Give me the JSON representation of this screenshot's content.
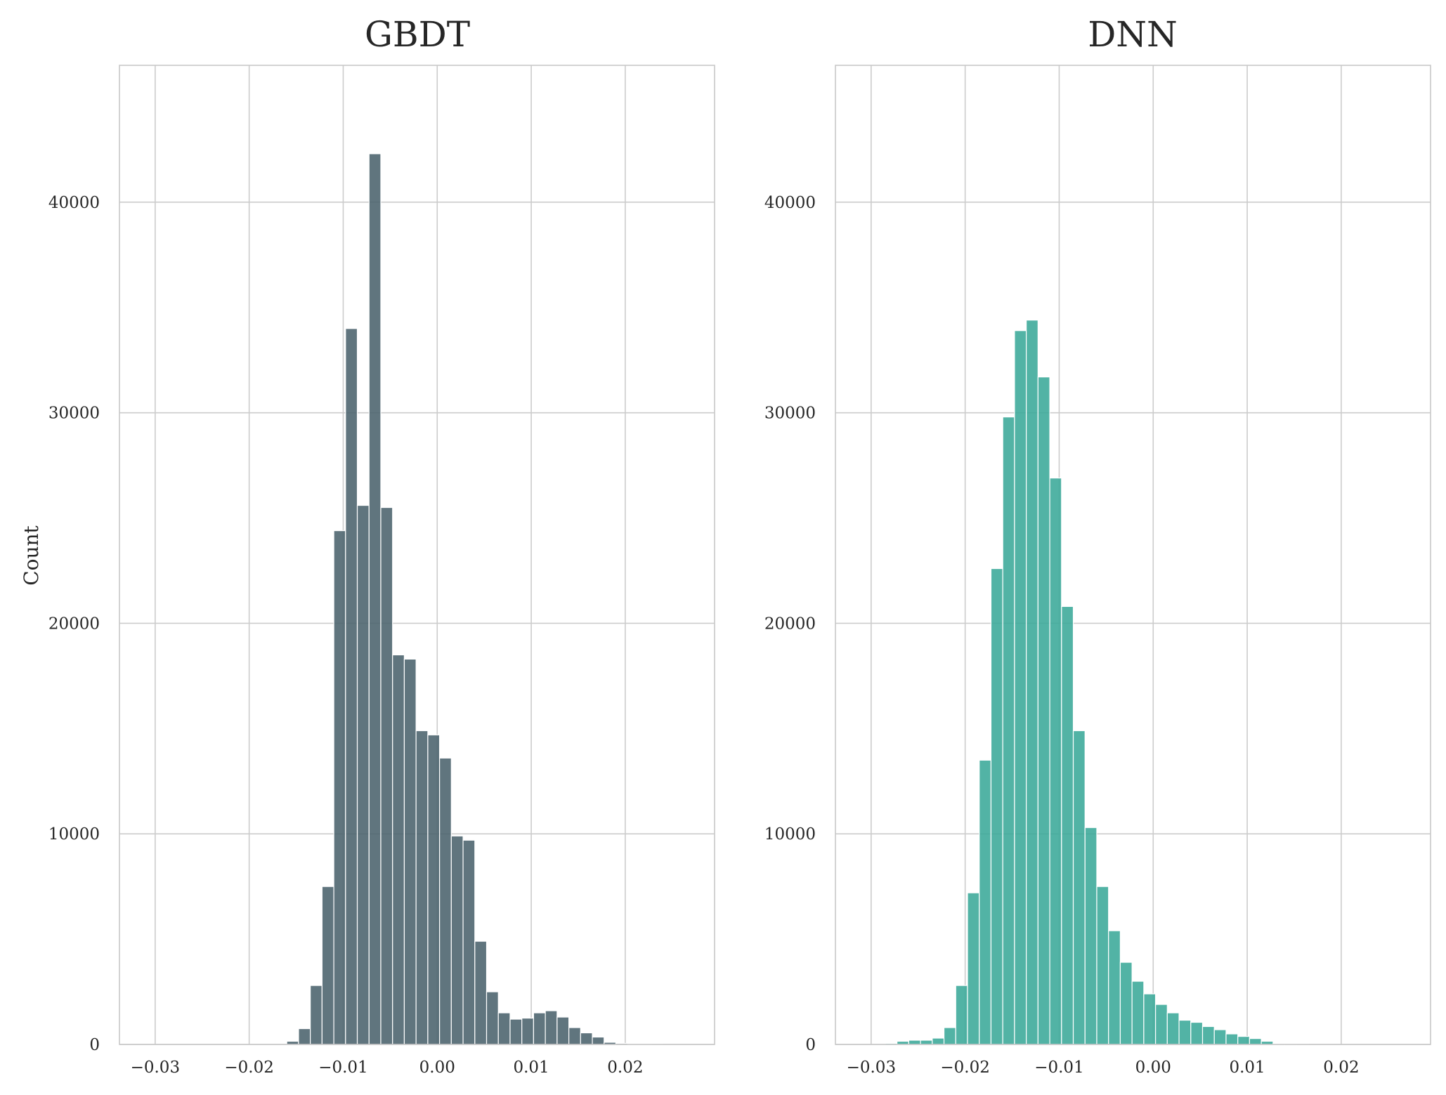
{
  "chart_data": [
    {
      "type": "bar",
      "title": "GBDT",
      "ylabel": "Count",
      "xlabel": "",
      "color": "#4a626c",
      "xlim": [
        -0.0338,
        0.0295
      ],
      "ylim": [
        0,
        46500
      ],
      "xticks": [
        -0.03,
        -0.02,
        -0.01,
        0.0,
        0.01,
        0.02
      ],
      "xtick_labels": [
        "−0.03",
        "−0.02",
        "−0.01",
        "0.00",
        "0.01",
        "0.02"
      ],
      "yticks": [
        0,
        10000,
        20000,
        30000,
        40000
      ],
      "ytick_labels": [
        "0",
        "10000",
        "20000",
        "30000",
        "40000"
      ],
      "grid": true,
      "bin_start": -0.0285,
      "bin_width": 0.00125,
      "values": [
        0,
        0,
        0,
        0,
        0,
        0,
        0,
        0,
        0,
        0,
        150,
        750,
        2800,
        7500,
        24400,
        34000,
        25600,
        42300,
        25500,
        18500,
        18300,
        14900,
        14700,
        13600,
        9900,
        9700,
        4900,
        2500,
        1500,
        1200,
        1250,
        1500,
        1600,
        1300,
        800,
        550,
        350,
        100,
        50,
        20,
        10,
        5,
        0,
        0,
        0
      ]
    },
    {
      "type": "bar",
      "title": "DNN",
      "ylabel": "",
      "xlabel": "",
      "color": "#3aa899",
      "xlim": [
        -0.0338,
        0.0295
      ],
      "ylim": [
        0,
        46500
      ],
      "xticks": [
        -0.03,
        -0.02,
        -0.01,
        0.0,
        0.01,
        0.02
      ],
      "xtick_labels": [
        "−0.03",
        "−0.02",
        "−0.01",
        "0.00",
        "0.01",
        "0.02"
      ],
      "yticks": [
        0,
        10000,
        20000,
        30000,
        40000
      ],
      "ytick_labels": [
        "0",
        "10000",
        "20000",
        "30000",
        "40000"
      ],
      "grid": true,
      "bin_start": -0.0285,
      "bin_width": 0.00125,
      "values": [
        50,
        150,
        200,
        200,
        300,
        800,
        2800,
        7200,
        13500,
        22600,
        29800,
        33900,
        34400,
        31700,
        26900,
        20800,
        14900,
        10300,
        7500,
        5400,
        3900,
        3000,
        2400,
        1900,
        1500,
        1150,
        1050,
        850,
        700,
        500,
        380,
        280,
        150,
        40,
        10,
        5,
        0,
        0,
        0,
        0,
        0,
        0,
        0,
        0
      ]
    }
  ]
}
